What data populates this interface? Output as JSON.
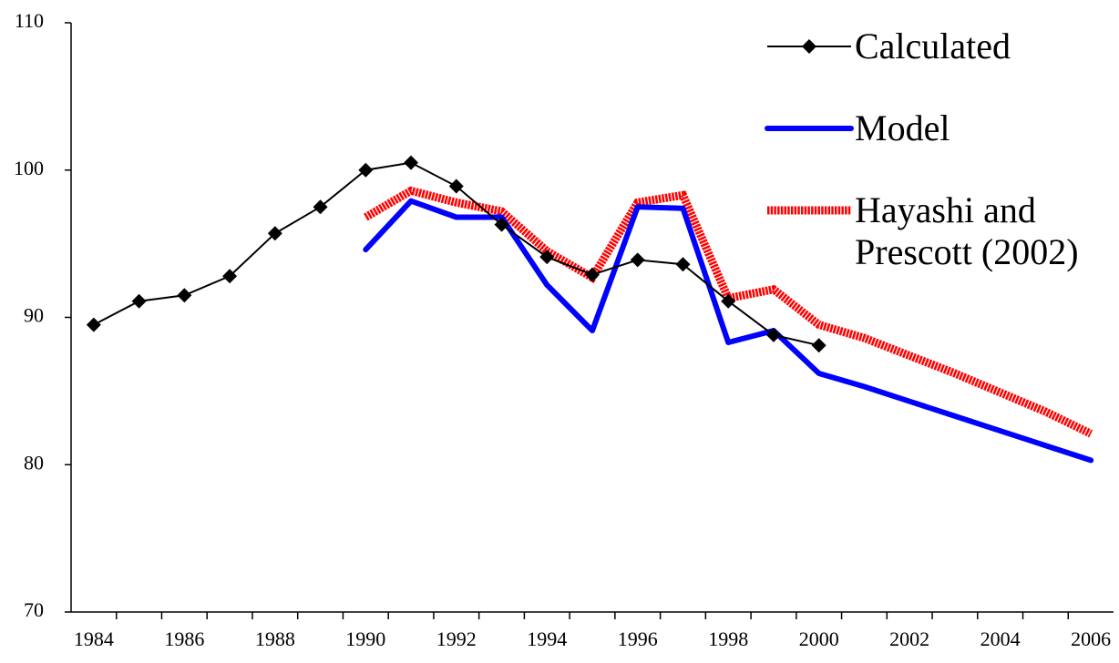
{
  "chart_data": {
    "type": "line",
    "categories": [
      "1984",
      null,
      "1986",
      null,
      "1988",
      null,
      "1990",
      null,
      "1992",
      null,
      "1994",
      null,
      "1996",
      null,
      "1998",
      null,
      "2000",
      null,
      "2002",
      null,
      "2004",
      null,
      "2006"
    ],
    "ylim": [
      70,
      110
    ],
    "yticks": [
      70,
      80,
      90,
      100,
      110
    ],
    "series": [
      {
        "name": "Calculated",
        "color": "#000000",
        "marker": "diamond",
        "values": [
          89.5,
          91.1,
          91.5,
          92.8,
          95.7,
          97.5,
          100.0,
          100.5,
          98.9,
          96.3,
          94.1,
          92.9,
          93.9,
          93.6,
          91.1,
          88.8,
          88.1,
          null,
          null,
          null,
          null,
          null,
          null
        ]
      },
      {
        "name": "Model",
        "color": "#0000ff",
        "values": [
          null,
          null,
          null,
          null,
          null,
          null,
          94.6,
          97.9,
          96.8,
          96.8,
          92.2,
          89.1,
          97.5,
          97.4,
          88.3,
          89.1,
          86.2,
          85.3,
          84.3,
          83.3,
          82.3,
          81.3,
          80.3
        ]
      },
      {
        "name": "Hayashi and Prescott (2002)",
        "color": "#ff0000",
        "style": "hatched",
        "values": [
          null,
          null,
          null,
          null,
          null,
          null,
          96.8,
          98.6,
          97.8,
          97.2,
          94.5,
          92.7,
          97.8,
          98.3,
          91.3,
          91.9,
          89.5,
          88.6,
          87.4,
          86.2,
          84.9,
          83.6,
          82.1
        ]
      }
    ]
  }
}
